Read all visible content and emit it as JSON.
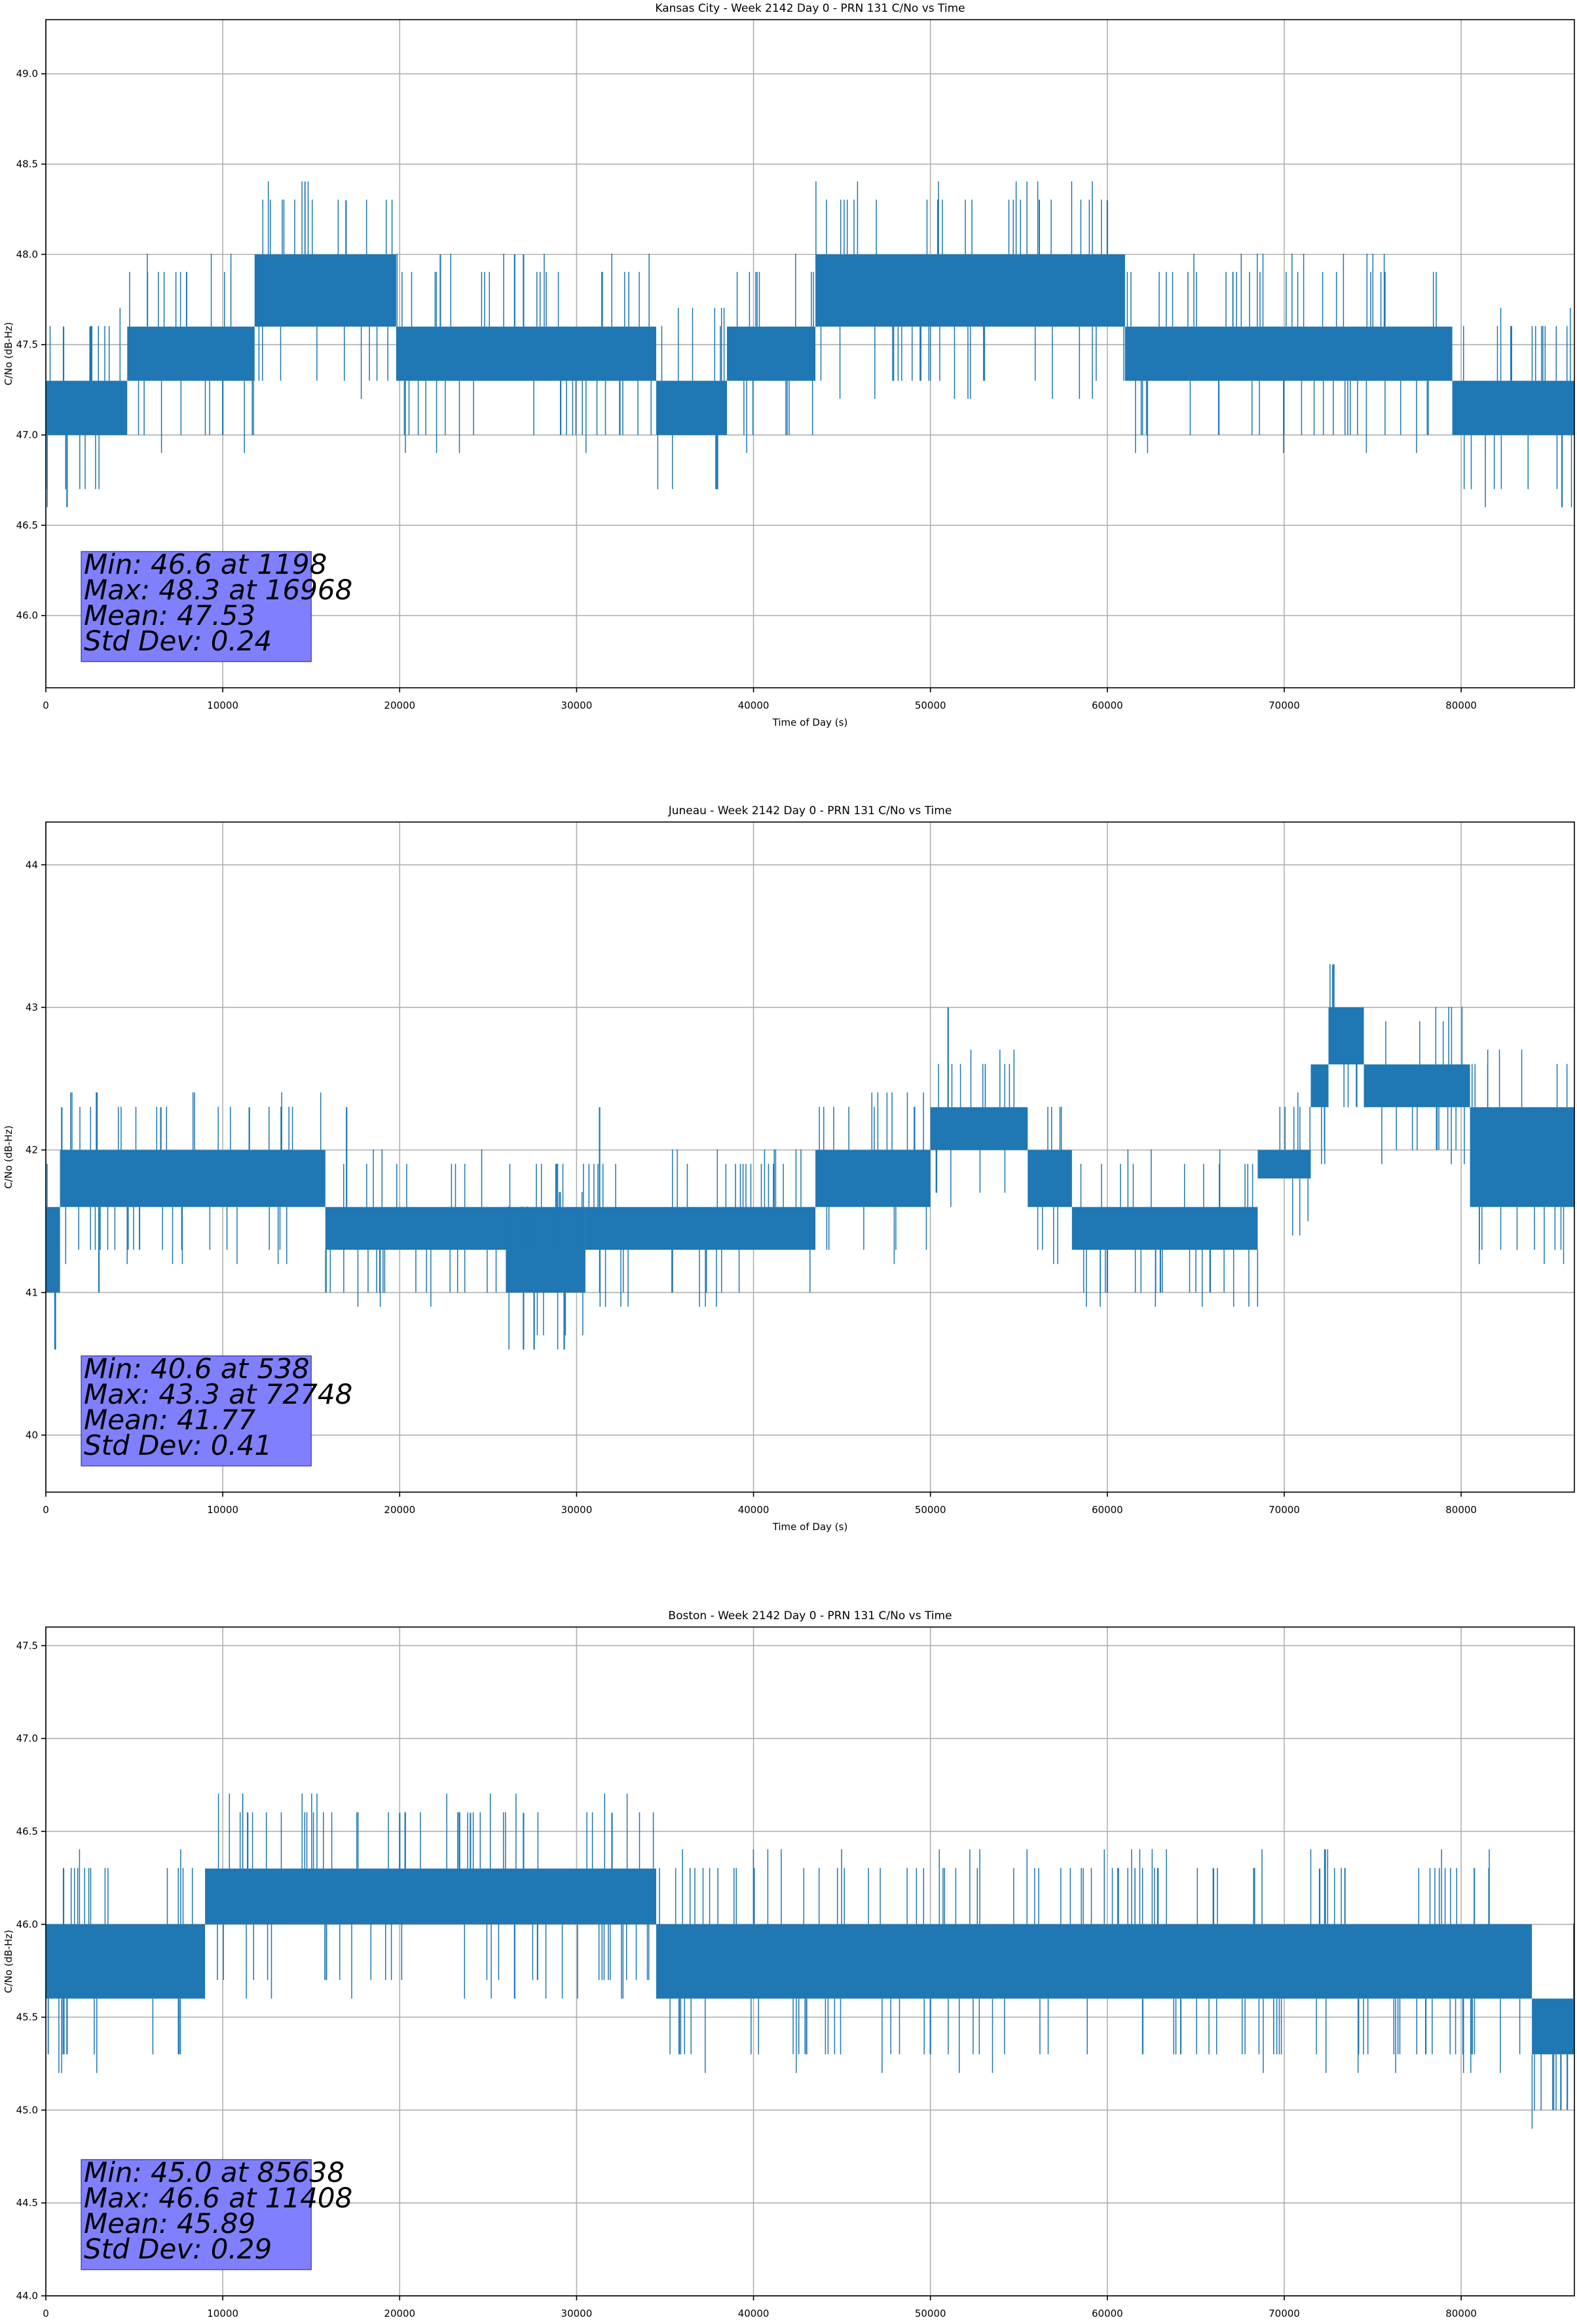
{
  "chart_data": [
    {
      "type": "line",
      "title": "Kansas City - Week 2142 Day 0 - PRN 131 C/No vs Time",
      "xlabel": "Time of Day (s)",
      "ylabel": "C/No (dB-Hz)",
      "xlim": [
        0,
        86400
      ],
      "ylim": [
        45.6,
        49.3
      ],
      "xticks": [
        "0",
        "10000",
        "20000",
        "30000",
        "40000",
        "50000",
        "60000",
        "70000",
        "80000"
      ],
      "yticks": [
        "46.0",
        "46.5",
        "47.0",
        "47.5",
        "48.0",
        "48.5",
        "49.0"
      ],
      "grid": true,
      "color": "#1f77b4",
      "stats": [
        "Min: 46.6 at 1198",
        "Max: 48.3 at 16968",
        "Mean: 47.53",
        "Std Dev: 0.24"
      ],
      "series": [
        {
          "segments": [
            {
              "x": [
                0,
                1000
              ],
              "range": [
                47.0,
                47.3
              ]
            },
            {
              "x": [
                1000,
                4600
              ],
              "range": [
                47.0,
                47.3
              ]
            },
            {
              "x": [
                4600,
                11800
              ],
              "range": [
                47.3,
                47.6
              ]
            },
            {
              "x": [
                11800,
                19800
              ],
              "range": [
                47.6,
                48.0
              ]
            },
            {
              "x": [
                19800,
                34500
              ],
              "range": [
                47.3,
                47.6
              ]
            },
            {
              "x": [
                34500,
                38500
              ],
              "range": [
                47.0,
                47.3
              ]
            },
            {
              "x": [
                38500,
                43500
              ],
              "range": [
                47.3,
                47.6
              ]
            },
            {
              "x": [
                43500,
                61000
              ],
              "range": [
                47.6,
                48.0
              ]
            },
            {
              "x": [
                61000,
                79500
              ],
              "range": [
                47.3,
                47.6
              ]
            },
            {
              "x": [
                79500,
                86400
              ],
              "range": [
                47.0,
                47.3
              ]
            }
          ],
          "spikes": [
            {
              "x": 1198,
              "y": 46.6
            },
            {
              "x": 16968,
              "y": 48.3
            },
            {
              "x": 60000,
              "y": 48.3
            },
            {
              "x": 85700,
              "y": 46.6
            },
            {
              "x": 29100,
              "y": 47.0
            },
            {
              "x": 66300,
              "y": 47.0
            },
            {
              "x": 81000,
              "y": 47.0
            },
            {
              "x": 10000,
              "y": 47.0
            },
            {
              "x": 1000,
              "y": 47.6
            },
            {
              "x": 2500,
              "y": 47.6
            },
            {
              "x": 26500,
              "y": 48.0
            },
            {
              "x": 27000,
              "y": 48.0
            },
            {
              "x": 22300,
              "y": 48.0
            },
            {
              "x": 12000,
              "y": 48.0
            }
          ]
        }
      ]
    },
    {
      "type": "line",
      "title": "Juneau - Week 2142 Day 0 - PRN 131 C/No vs Time",
      "xlabel": "Time of Day (s)",
      "ylabel": "C/No (dB-Hz)",
      "xlim": [
        0,
        86400
      ],
      "ylim": [
        39.6,
        44.3
      ],
      "xticks": [
        "0",
        "10000",
        "20000",
        "30000",
        "40000",
        "50000",
        "60000",
        "70000",
        "80000"
      ],
      "yticks": [
        "40",
        "41",
        "42",
        "43",
        "44"
      ],
      "grid": true,
      "color": "#1f77b4",
      "stats": [
        "Min: 40.6 at 538",
        "Max: 43.3 at 72748",
        "Mean: 41.77",
        "Std Dev: 0.41"
      ],
      "series": [
        {
          "segments": [
            {
              "x": [
                0,
                800
              ],
              "range": [
                41.0,
                41.6
              ]
            },
            {
              "x": [
                800,
                15800
              ],
              "range": [
                41.6,
                42.0
              ]
            },
            {
              "x": [
                15800,
                30500
              ],
              "range": [
                41.3,
                41.6
              ]
            },
            {
              "x": [
                26000,
                30500
              ],
              "range": [
                41.0,
                41.3
              ]
            },
            {
              "x": [
                30500,
                43500
              ],
              "range": [
                41.3,
                41.6
              ]
            },
            {
              "x": [
                43500,
                50000
              ],
              "range": [
                41.6,
                42.0
              ]
            },
            {
              "x": [
                50000,
                55500
              ],
              "range": [
                42.0,
                42.3
              ]
            },
            {
              "x": [
                55500,
                58000
              ],
              "range": [
                41.6,
                42.0
              ]
            },
            {
              "x": [
                58000,
                68500
              ],
              "range": [
                41.3,
                41.6
              ]
            },
            {
              "x": [
                68500,
                71500
              ],
              "range": [
                41.8,
                42.0
              ]
            },
            {
              "x": [
                71500,
                72500
              ],
              "range": [
                42.3,
                42.6
              ]
            },
            {
              "x": [
                72500,
                74500
              ],
              "range": [
                42.6,
                43.0
              ]
            },
            {
              "x": [
                74500,
                80500
              ],
              "range": [
                42.3,
                42.6
              ]
            },
            {
              "x": [
                80500,
                86400
              ],
              "range": [
                41.6,
                42.3
              ]
            }
          ],
          "spikes": [
            {
              "x": 538,
              "y": 40.6
            },
            {
              "x": 72748,
              "y": 43.3
            },
            {
              "x": 51000,
              "y": 43.0
            },
            {
              "x": 27000,
              "y": 40.6
            },
            {
              "x": 27600,
              "y": 40.6
            },
            {
              "x": 29300,
              "y": 40.6
            },
            {
              "x": 900,
              "y": 42.3
            },
            {
              "x": 6500,
              "y": 42.3
            },
            {
              "x": 11500,
              "y": 42.3
            },
            {
              "x": 17000,
              "y": 42.3
            },
            {
              "x": 31300,
              "y": 42.3
            },
            {
              "x": 3000,
              "y": 41.0
            },
            {
              "x": 60000,
              "y": 41.0
            },
            {
              "x": 63000,
              "y": 41.0
            }
          ]
        }
      ]
    },
    {
      "type": "line",
      "title": "Boston - Week 2142 Day 0 - PRN 131 C/No vs Time",
      "xlabel": "Time of Day (s)",
      "ylabel": "C/No (dB-Hz)",
      "xlim": [
        0,
        86400
      ],
      "ylim": [
        44.0,
        47.6
      ],
      "xticks": [
        "0",
        "10000",
        "20000",
        "30000",
        "40000",
        "50000",
        "60000",
        "70000",
        "80000"
      ],
      "yticks": [
        "44.0",
        "44.5",
        "45.0",
        "45.5",
        "46.0",
        "46.5",
        "47.0",
        "47.5"
      ],
      "grid": true,
      "color": "#1f77b4",
      "stats": [
        "Min: 45.0 at 85638",
        "Max: 46.6 at 11408",
        "Mean: 45.89",
        "Std Dev: 0.29"
      ],
      "series": [
        {
          "segments": [
            {
              "x": [
                0,
                9000
              ],
              "range": [
                45.6,
                46.0
              ]
            },
            {
              "x": [
                9000,
                34500
              ],
              "range": [
                46.0,
                46.3
              ]
            },
            {
              "x": [
                34500,
                84000
              ],
              "range": [
                45.6,
                46.0
              ]
            },
            {
              "x": [
                84000,
                86400
              ],
              "range": [
                45.3,
                45.6
              ]
            }
          ],
          "spikes": [
            {
              "x": 85638,
              "y": 45.0
            },
            {
              "x": 86000,
              "y": 45.0
            },
            {
              "x": 11408,
              "y": 46.6
            },
            {
              "x": 20000,
              "y": 46.6
            },
            {
              "x": 24000,
              "y": 46.6
            },
            {
              "x": 32000,
              "y": 46.6
            },
            {
              "x": 27000,
              "y": 46.6
            },
            {
              "x": 1000,
              "y": 46.3
            },
            {
              "x": 1200,
              "y": 45.3
            },
            {
              "x": 26500,
              "y": 45.6
            },
            {
              "x": 35800,
              "y": 45.3
            },
            {
              "x": 43000,
              "y": 45.3
            },
            {
              "x": 50000,
              "y": 45.3
            },
            {
              "x": 62000,
              "y": 45.3
            },
            {
              "x": 78000,
              "y": 45.3
            },
            {
              "x": 66000,
              "y": 46.3
            },
            {
              "x": 72000,
              "y": 46.3
            }
          ]
        }
      ]
    }
  ]
}
